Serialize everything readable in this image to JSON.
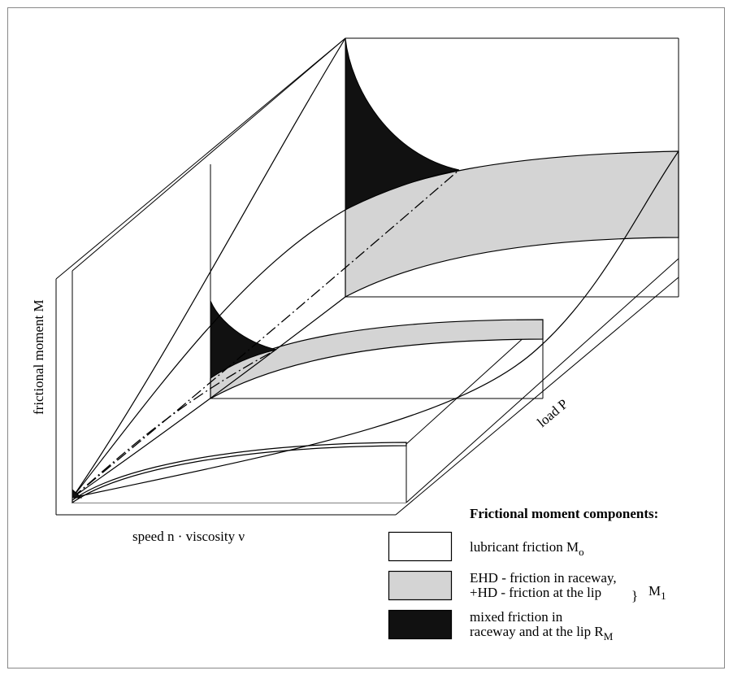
{
  "axes": {
    "y_label": "frictional moment M",
    "x_label": "speed n  · viscosity ν",
    "z_label": "load P"
  },
  "legend": {
    "title": "Frictional moment components:",
    "items": [
      {
        "text": "lubricant friction M",
        "sub": "o",
        "fill": "#ffffff"
      },
      {
        "line1": "EHD - friction in raceway,",
        "line2": "+HD - friction at the lip",
        "fill": "#d4d4d4"
      },
      {
        "line1": "mixed friction in",
        "line2": "raceway and at the lip R",
        "sub": "M",
        "fill": "#111111"
      }
    ],
    "group_label": "M",
    "group_sub": "1",
    "brace": "}"
  }
}
